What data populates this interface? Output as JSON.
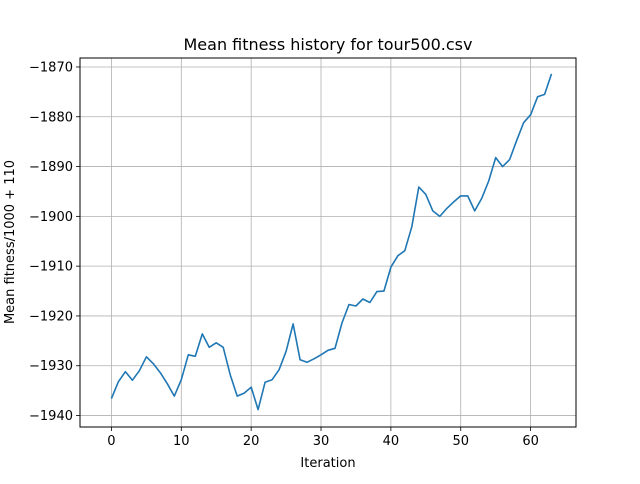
{
  "chart_data": {
    "type": "line",
    "title": "Mean fitness history for tour500.csv",
    "xlabel": "Iteration",
    "ylabel": "Mean fitness/1000 + 110",
    "xlim": [
      -4.5,
      66.5
    ],
    "ylim": [
      -1942.3,
      -1868.2
    ],
    "xticks": [
      0,
      10,
      20,
      30,
      40,
      50,
      60
    ],
    "yticks": [
      -1940,
      -1930,
      -1920,
      -1910,
      -1900,
      -1890,
      -1880,
      -1870
    ],
    "grid": true,
    "series": [
      {
        "color": "#1f77b4",
        "x": [
          0,
          1,
          2,
          3,
          4,
          5,
          6,
          7,
          8,
          9,
          10,
          11,
          12,
          13,
          14,
          15,
          16,
          17,
          18,
          19,
          20,
          21,
          22,
          23,
          24,
          25,
          26,
          27,
          28,
          29,
          30,
          31,
          32,
          33,
          34,
          35,
          36,
          37,
          38,
          39,
          40,
          41,
          42,
          43,
          44,
          45,
          46,
          47,
          48,
          49,
          50,
          51,
          52,
          53,
          54,
          55,
          56,
          57,
          58,
          59,
          60,
          61,
          62,
          63
        ],
        "y": [
          -1936.6,
          -1933.2,
          -1931.2,
          -1932.9,
          -1931.0,
          -1928.2,
          -1929.6,
          -1931.4,
          -1933.6,
          -1936.1,
          -1932.8,
          -1927.8,
          -1928.1,
          -1923.6,
          -1926.3,
          -1925.4,
          -1926.3,
          -1931.8,
          -1936.1,
          -1935.5,
          -1934.3,
          -1938.8,
          -1933.3,
          -1932.8,
          -1930.8,
          -1927.1,
          -1921.6,
          -1928.8,
          -1929.3,
          -1928.6,
          -1927.8,
          -1926.9,
          -1926.5,
          -1921.4,
          -1917.7,
          -1918.0,
          -1916.6,
          -1917.3,
          -1915.1,
          -1915.0,
          -1910.2,
          -1907.9,
          -1906.9,
          -1902.1,
          -1894.1,
          -1895.6,
          -1898.9,
          -1900.0,
          -1898.4,
          -1897.1,
          -1895.9,
          -1895.9,
          -1898.9,
          -1896.4,
          -1892.9,
          -1888.2,
          -1890.0,
          -1888.6,
          -1884.8,
          -1881.2,
          -1879.6,
          -1876.0,
          -1875.5,
          -1871.4
        ]
      }
    ]
  }
}
